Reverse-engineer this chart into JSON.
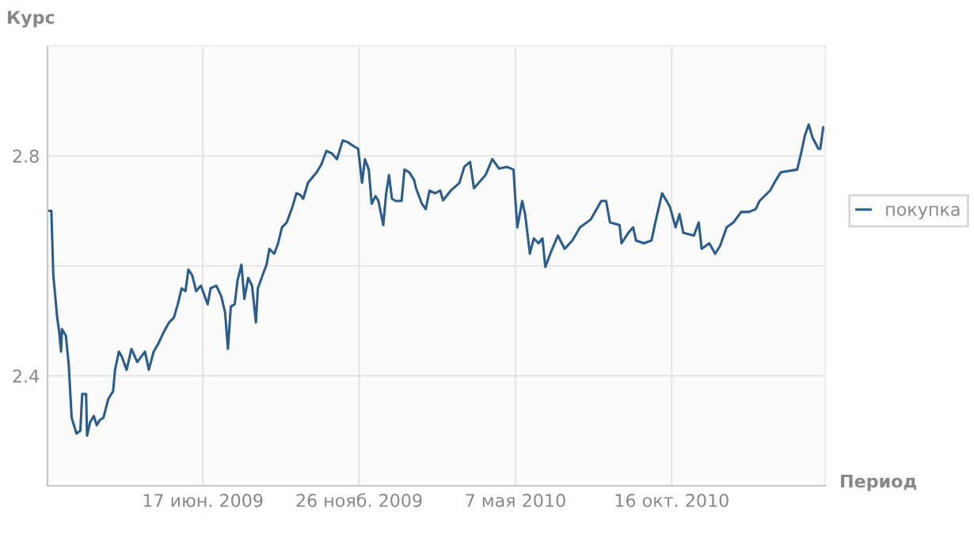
{
  "chart_data": {
    "type": "line",
    "xlabel": "Период",
    "ylabel": "Курс",
    "xlim": [
      "2009-01-07",
      "2011-03-24"
    ],
    "ylim": [
      2.2,
      3.0
    ],
    "xticks": [
      {
        "value": "2009-06-17",
        "label": "17 июн. 2009"
      },
      {
        "value": "2009-11-26",
        "label": "26 нояб. 2009"
      },
      {
        "value": "2010-05-07",
        "label": "7 мая 2010"
      },
      {
        "value": "2010-10-16",
        "label": "16 окт. 2010"
      }
    ],
    "yticks": [
      2.4,
      {
        "value": 2.6,
        "label": null
      },
      2.8
    ],
    "grid": true,
    "legend": "right",
    "marker": "none",
    "line_style": "solid",
    "x": [
      "2009-01-07",
      "2009-01-11",
      "2009-01-13",
      "2009-01-15",
      "2009-01-17",
      "2009-01-19",
      "2009-01-21",
      "2009-01-22",
      "2009-01-26",
      "2009-01-29",
      "2009-02-01",
      "2009-02-06",
      "2009-02-10",
      "2009-02-12",
      "2009-02-16",
      "2009-02-17",
      "2009-02-20",
      "2009-02-24",
      "2009-02-27",
      "2009-03-02",
      "2009-03-06",
      "2009-03-11",
      "2009-03-16",
      "2009-03-18",
      "2009-03-22",
      "2009-03-25",
      "2009-03-30",
      "2009-04-04",
      "2009-04-10",
      "2009-04-18",
      "2009-04-22",
      "2009-04-27",
      "2009-05-02",
      "2009-05-07",
      "2009-05-13",
      "2009-05-18",
      "2009-05-22",
      "2009-05-26",
      "2009-05-30",
      "2009-06-02",
      "2009-06-06",
      "2009-06-10",
      "2009-06-15",
      "2009-06-22",
      "2009-06-25",
      "2009-07-01",
      "2009-07-06",
      "2009-07-10",
      "2009-07-13",
      "2009-07-16",
      "2009-07-20",
      "2009-07-23",
      "2009-07-27",
      "2009-07-30",
      "2009-08-03",
      "2009-08-07",
      "2009-08-11",
      "2009-08-13",
      "2009-08-19",
      "2009-08-22",
      "2009-08-25",
      "2009-08-30",
      "2009-09-03",
      "2009-09-07",
      "2009-09-12",
      "2009-09-18",
      "2009-09-22",
      "2009-09-26",
      "2009-09-29",
      "2009-10-04",
      "2009-10-13",
      "2009-10-18",
      "2009-10-23",
      "2009-10-29",
      "2009-11-03",
      "2009-11-09",
      "2009-11-14",
      "2009-11-20",
      "2009-11-25",
      "2009-11-29",
      "2009-12-02",
      "2009-12-06",
      "2009-12-09",
      "2009-12-13",
      "2009-12-16",
      "2009-12-21",
      "2009-12-24",
      "2009-12-27",
      "2009-12-30",
      "2010-01-03",
      "2010-01-09",
      "2010-01-12",
      "2010-01-17",
      "2010-01-22",
      "2010-01-24",
      "2010-01-30",
      "2010-02-03",
      "2010-02-07",
      "2010-02-13",
      "2010-02-18",
      "2010-02-21",
      "2010-03-01",
      "2010-03-10",
      "2010-03-15",
      "2010-03-21",
      "2010-03-25",
      "2010-03-30",
      "2010-04-06",
      "2010-04-13",
      "2010-04-20",
      "2010-04-28",
      "2010-05-05",
      "2010-05-07",
      "2010-05-09",
      "2010-05-14",
      "2010-05-17",
      "2010-05-22",
      "2010-05-26",
      "2010-05-31",
      "2010-06-04",
      "2010-06-07",
      "2010-06-13",
      "2010-06-20",
      "2010-06-27",
      "2010-07-05",
      "2010-07-13",
      "2010-07-24",
      "2010-08-04",
      "2010-08-09",
      "2010-08-13",
      "2010-08-23",
      "2010-08-25",
      "2010-09-01",
      "2010-09-06",
      "2010-09-09",
      "2010-09-17",
      "2010-09-25",
      "2010-09-29",
      "2010-10-06",
      "2010-10-14",
      "2010-10-20",
      "2010-10-24",
      "2010-10-28",
      "2010-11-08",
      "2010-11-13",
      "2010-11-16",
      "2010-11-24",
      "2010-11-30",
      "2010-12-05",
      "2010-12-12",
      "2010-12-19",
      "2010-12-27",
      "2011-01-04",
      "2011-01-11",
      "2011-01-15",
      "2011-01-26",
      "2011-02-01",
      "2011-02-06",
      "2011-02-23",
      "2011-02-27",
      "2011-03-03",
      "2011-03-07",
      "2011-03-11",
      "2011-03-17",
      "2011-03-19",
      "2011-03-22",
      "2011-03-24"
    ],
    "series": [
      {
        "name": "покупка",
        "color": "#2b5d8c",
        "values": [
          2.7,
          2.7,
          2.583,
          2.545,
          2.506,
          2.482,
          2.444,
          2.485,
          2.473,
          2.42,
          2.324,
          2.295,
          2.3,
          2.367,
          2.367,
          2.291,
          2.315,
          2.327,
          2.31,
          2.319,
          2.324,
          2.358,
          2.372,
          2.411,
          2.444,
          2.435,
          2.411,
          2.449,
          2.425,
          2.444,
          2.411,
          2.444,
          2.459,
          2.478,
          2.497,
          2.506,
          2.53,
          2.559,
          2.554,
          2.593,
          2.583,
          2.554,
          2.564,
          2.53,
          2.559,
          2.564,
          2.545,
          2.516,
          2.449,
          2.526,
          2.53,
          2.574,
          2.602,
          2.54,
          2.578,
          2.564,
          2.497,
          2.559,
          2.588,
          2.602,
          2.631,
          2.622,
          2.641,
          2.67,
          2.679,
          2.708,
          2.732,
          2.729,
          2.722,
          2.751,
          2.77,
          2.785,
          2.809,
          2.804,
          2.794,
          2.828,
          2.825,
          2.818,
          2.813,
          2.751,
          2.794,
          2.775,
          2.713,
          2.727,
          2.718,
          2.674,
          2.732,
          2.765,
          2.722,
          2.718,
          2.718,
          2.775,
          2.77,
          2.756,
          2.741,
          2.713,
          2.703,
          2.737,
          2.732,
          2.737,
          2.719,
          2.737,
          2.751,
          2.78,
          2.789,
          2.741,
          2.751,
          2.765,
          2.794,
          2.777,
          2.78,
          2.775,
          2.718,
          2.67,
          2.718,
          2.694,
          2.622,
          2.65,
          2.641,
          2.65,
          2.598,
          2.626,
          2.655,
          2.631,
          2.646,
          2.67,
          2.684,
          2.718,
          2.718,
          2.679,
          2.674,
          2.641,
          2.66,
          2.67,
          2.646,
          2.641,
          2.646,
          2.679,
          2.732,
          2.708,
          2.67,
          2.694,
          2.66,
          2.655,
          2.679,
          2.631,
          2.641,
          2.622,
          2.636,
          2.67,
          2.679,
          2.698,
          2.698,
          2.703,
          2.718,
          2.737,
          2.756,
          2.77,
          2.775,
          2.804,
          2.837,
          2.857,
          2.833,
          2.813,
          2.813,
          2.852,
          2.847
        ]
      }
    ]
  }
}
